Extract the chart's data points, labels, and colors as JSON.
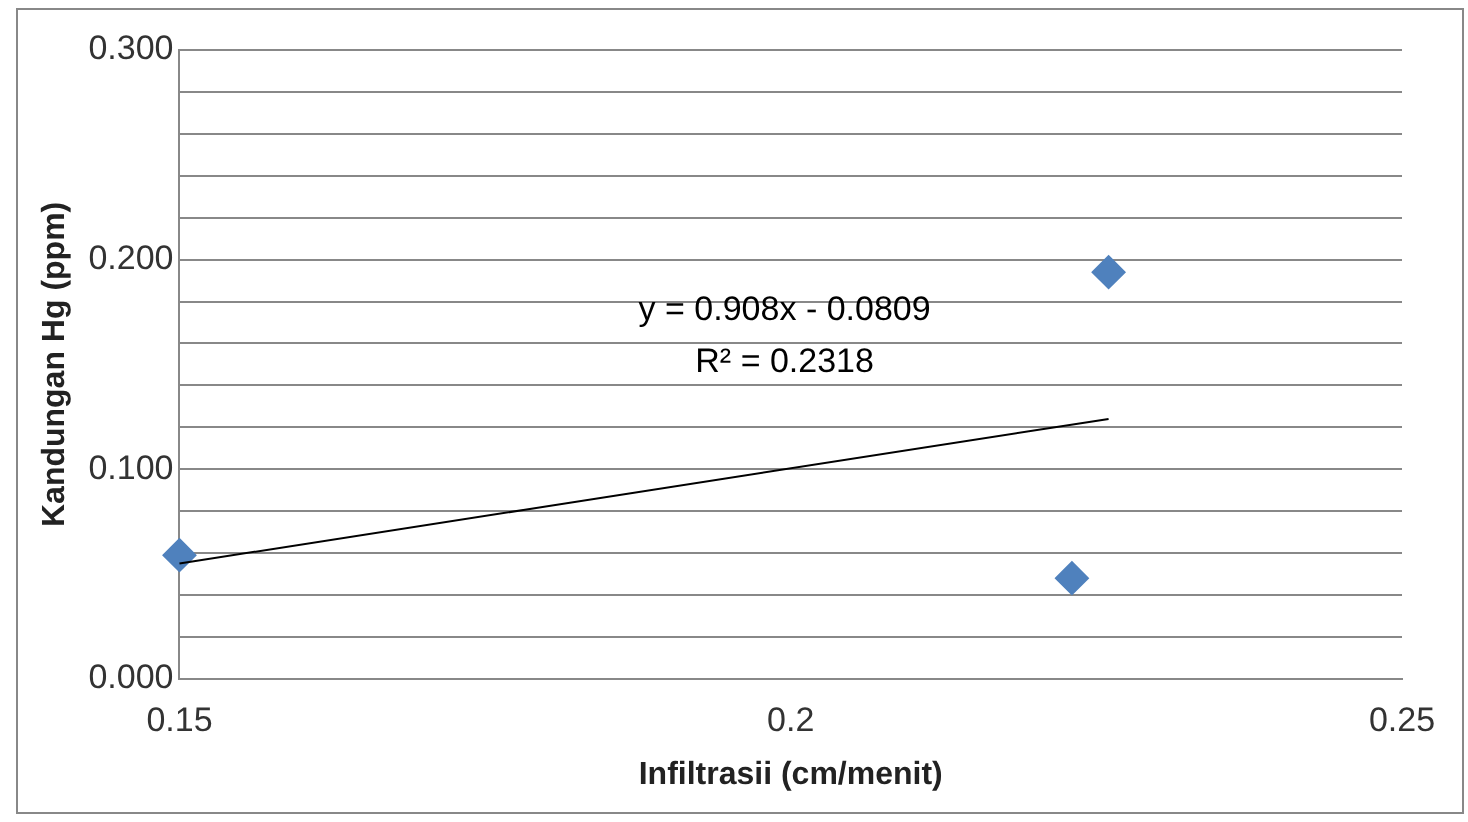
{
  "chart_data": {
    "type": "scatter",
    "xlabel": "Infiltrasii (cm/menit)",
    "ylabel": "Kandungan Hg (ppm)",
    "series": [
      {
        "type": "scatter",
        "color": "#4f81bd",
        "x": [
          0.15,
          0.223,
          0.226
        ],
        "values": [
          0.059,
          0.048,
          0.194
        ],
        "marker": "diamond"
      },
      {
        "type": "line",
        "color": "#000000",
        "x": [
          0.15,
          0.226
        ],
        "values": [
          0.055,
          0.124
        ],
        "marker": "none"
      }
    ],
    "xlim": [
      0.15,
      0.25
    ],
    "xticks": [
      0.15,
      0.2,
      0.25
    ],
    "ylim": [
      0,
      0.3
    ],
    "yticks": [
      {
        "value": 0,
        "label": "0.000"
      },
      {
        "value": 0.02,
        "label": null
      },
      {
        "value": 0.04,
        "label": null
      },
      {
        "value": 0.06,
        "label": null
      },
      {
        "value": 0.08,
        "label": null
      },
      {
        "value": 0.1,
        "label": "0.100"
      },
      {
        "value": 0.12,
        "label": null
      },
      {
        "value": 0.14,
        "label": null
      },
      {
        "value": 0.16,
        "label": null
      },
      {
        "value": 0.18,
        "label": null
      },
      {
        "value": 0.2,
        "label": "0.200"
      },
      {
        "value": 0.22,
        "label": null
      },
      {
        "value": 0.24,
        "label": null
      },
      {
        "value": 0.26,
        "label": null
      },
      {
        "value": 0.28,
        "label": null
      },
      {
        "value": 0.3,
        "label": "0.300"
      }
    ],
    "grid": "y",
    "legend": false,
    "annotations": [
      "y = 0.908x - 0.0809",
      "R² = 0.2318"
    ]
  }
}
